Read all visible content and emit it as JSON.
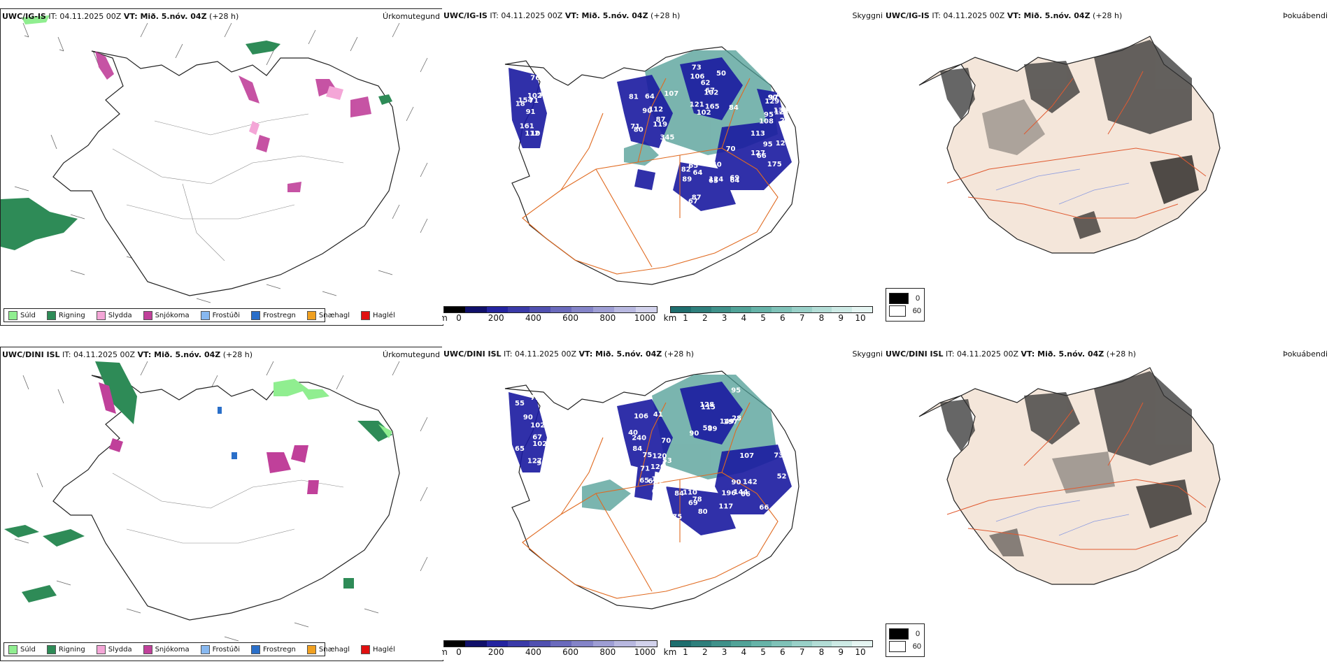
{
  "rows": [
    {
      "model": "UWC/IG-IS",
      "it_label": "IT: 04.11.2025 00Z",
      "vt_label": "VT: Mið. 5.nóv. 04Z",
      "lead": "(+28 h)",
      "panels": {
        "precip": {
          "title": "Úrkomutegund"
        },
        "visibility": {
          "title": "Skyggni",
          "labels": [
            "91",
            "81",
            "67",
            "69",
            "124",
            "95",
            "76",
            "64",
            "50",
            "66",
            "65",
            "24",
            "18",
            "107",
            "102",
            "95",
            "67",
            "90",
            "102",
            "71",
            "62",
            "64",
            "87",
            "97",
            "71",
            "87",
            "106",
            "113",
            "89",
            "133",
            "76",
            "90",
            "165",
            "127",
            "64",
            "120",
            "161",
            "345",
            "84",
            "175",
            "140",
            "129",
            "154",
            "119",
            "102",
            "70",
            "65",
            "108",
            "112",
            "112",
            "121",
            "120",
            "82",
            "123",
            "10",
            "80",
            "73"
          ]
        },
        "cloud": {
          "title": "Þokuábendi"
        }
      }
    },
    {
      "model": "UWC/DINI ISL",
      "it_label": "IT: 04.11.2025 00Z",
      "vt_label": "VT: Mið. 5.nóv. 04Z",
      "lead": "(+28 h)",
      "panels": {
        "precip": {
          "title": "Úrkomutegund"
        },
        "visibility": {
          "title": "Skyggni",
          "labels": [
            "67",
            "70",
            "90",
            "107",
            "78",
            "63",
            "65",
            "41",
            "128",
            "66",
            "84",
            "65",
            "55",
            "53",
            "59",
            "52",
            "80",
            "69",
            "90",
            "84",
            "95",
            "73",
            "69",
            "75",
            "72",
            "106",
            "149",
            "90",
            "110",
            "152",
            "127",
            "120",
            "115",
            "142",
            "117",
            "168",
            "102",
            "240",
            "89",
            "144",
            "196",
            "126",
            "91",
            "75",
            "197",
            "66",
            "75",
            "71",
            "102",
            "40",
            "28"
          ]
        },
        "cloud": {
          "title": "Þokuábendi"
        }
      }
    }
  ],
  "precip_legend": [
    {
      "label": "Súld",
      "color": "#90ee90"
    },
    {
      "label": "Rigning",
      "color": "#2e8b57"
    },
    {
      "label": "Slydda",
      "color": "#f4a6d7"
    },
    {
      "label": "Snjókoma",
      "color": "#c0409a"
    },
    {
      "label": "Frostúði",
      "color": "#87b8f0"
    },
    {
      "label": "Frostregn",
      "color": "#2a6fc9"
    },
    {
      "label": "Snæhagl",
      "color": "#f0a020"
    },
    {
      "label": "Haglél",
      "color": "#e01010"
    }
  ],
  "altitude_bar": {
    "unit": "m",
    "ticks": [
      "0",
      "200",
      "400",
      "600",
      "800",
      "1000"
    ],
    "colors": [
      "#000000",
      "#10106a",
      "#2424a0",
      "#3a3aa8",
      "#5050b0",
      "#6a6abc",
      "#8484c8",
      "#9e9ed4",
      "#b8b8e0",
      "#d2d2ec"
    ]
  },
  "visibility_bar": {
    "unit": "km",
    "ticks": [
      "1",
      "2",
      "3",
      "4",
      "5",
      "6",
      "7",
      "8",
      "9",
      "10"
    ],
    "colors": [
      "#1e6e6e",
      "#2e7f7c",
      "#3f918a",
      "#51a398",
      "#66b3a8",
      "#7fc2b8",
      "#99d0c8",
      "#b3ddd6",
      "#cdeae5",
      "#e6f5f2"
    ]
  },
  "cloud_legend": [
    {
      "label": "0",
      "color": "#000000"
    },
    {
      "label": "60",
      "color": "#ffffff"
    }
  ],
  "colors": {
    "road": "#e06a20",
    "coast": "#222222",
    "land": "#f4e6da",
    "visibility_fill": "#1a1aa0",
    "visibility_teal": "#4e9c94"
  }
}
